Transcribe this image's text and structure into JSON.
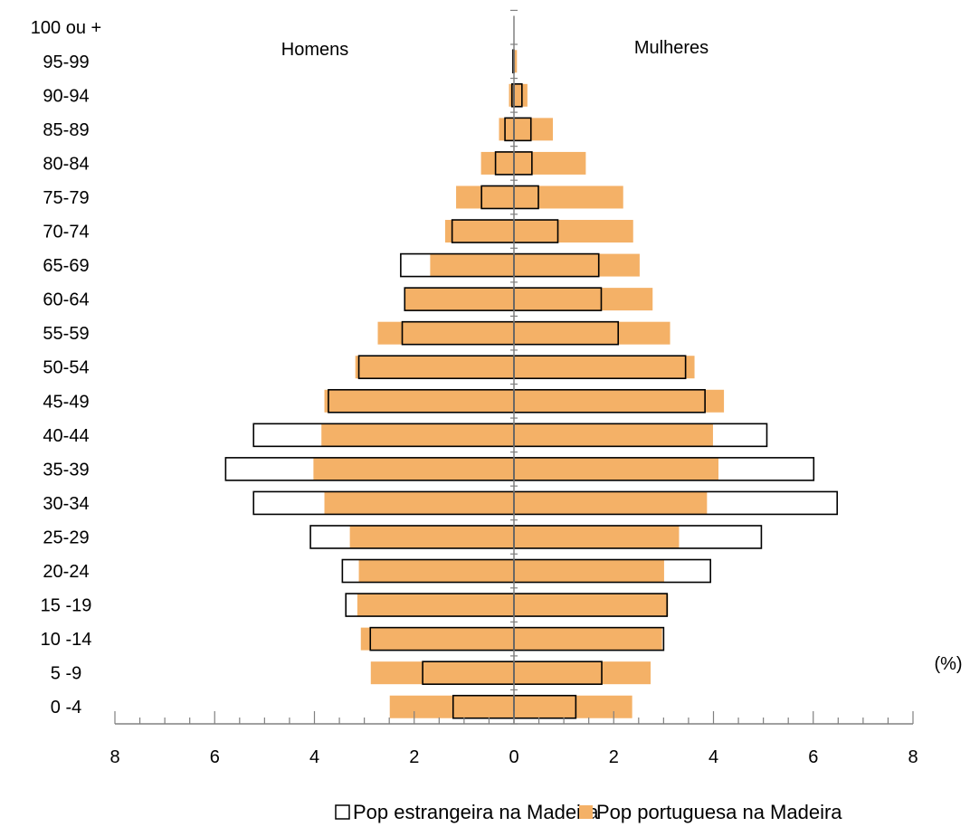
{
  "chart_data": {
    "type": "bar",
    "orientation": "horizontal",
    "layout": "population-pyramid",
    "categories": [
      "0 -4",
      "5 -9",
      "10 -14",
      "15 -19",
      "20-24",
      "25-29",
      "30-34",
      "35-39",
      "40-44",
      "45-49",
      "50-54",
      "55-59",
      "60-64",
      "65-69",
      "70-74",
      "75-79",
      "80-84",
      "85-89",
      "90-94",
      "95-99",
      "100 ou +"
    ],
    "left_group_label": "Homens",
    "right_group_label": "Mulheres",
    "x_unit_label": "(%)",
    "xlim": [
      -8,
      8
    ],
    "xticks": [
      -8,
      -6,
      -4,
      -2,
      0,
      2,
      4,
      6,
      8
    ],
    "xtick_labels": [
      "8",
      "6",
      "4",
      "2",
      "0",
      "2",
      "4",
      "6",
      "8"
    ],
    "series": [
      {
        "name": "Pop estrangeira na Madeira",
        "style": "outline",
        "color": "#000000",
        "men": [
          1.22,
          1.83,
          2.88,
          3.37,
          3.44,
          4.08,
          5.22,
          5.78,
          5.22,
          3.72,
          3.11,
          2.24,
          2.19,
          2.27,
          1.24,
          0.65,
          0.37,
          0.18,
          0.04,
          0.02,
          0.0
        ],
        "women": [
          1.24,
          1.76,
          3.0,
          3.07,
          3.94,
          4.96,
          6.48,
          6.01,
          5.07,
          3.83,
          3.44,
          2.09,
          1.75,
          1.7,
          0.88,
          0.49,
          0.36,
          0.34,
          0.16,
          0.0,
          0.0
        ]
      },
      {
        "name": "Pop portuguesa na Madeira",
        "style": "filled",
        "color": "#F4B167",
        "men": [
          2.49,
          2.87,
          3.07,
          3.14,
          3.11,
          3.29,
          3.8,
          4.02,
          3.86,
          3.8,
          3.18,
          2.73,
          2.19,
          1.68,
          1.38,
          1.16,
          0.66,
          0.3,
          0.1,
          0.02,
          0.0
        ],
        "women": [
          2.37,
          2.74,
          2.97,
          3.09,
          3.01,
          3.31,
          3.87,
          4.1,
          3.99,
          4.21,
          3.62,
          3.13,
          2.78,
          2.52,
          2.39,
          2.19,
          1.44,
          0.78,
          0.27,
          0.06,
          0.0
        ]
      }
    ],
    "grid": false,
    "legend_position": "bottom"
  }
}
